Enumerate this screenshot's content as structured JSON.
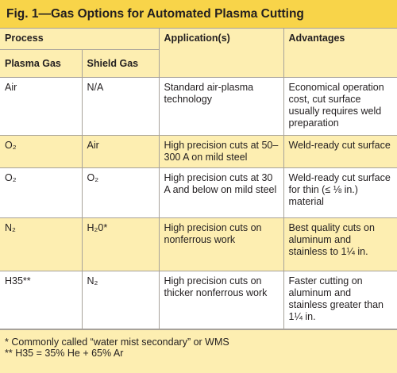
{
  "title": "Fig. 1—Gas Options for Automated Plasma Cutting",
  "table": {
    "header": {
      "group": "Process",
      "columns": [
        "Plasma Gas",
        "Shield Gas",
        "Application(s)",
        "Advantages"
      ]
    },
    "rows": [
      [
        "Air",
        "N/A",
        "Standard air-plasma technology",
        "Economical operation cost, cut surface usually requires weld preparation"
      ],
      [
        "O₂",
        "Air",
        "High precision cuts at 50–300 A on mild steel",
        "Weld-ready cut surface"
      ],
      [
        "O₂",
        "O₂",
        "High precision cuts at 30 A and below on mild steel",
        "Weld-ready cut surface for thin (≤ ⅛ in.) material"
      ],
      [
        "N₂",
        "H₂0*",
        "High precision cuts on nonferrous work",
        "Best quality cuts on aluminum and stainless to 1¼ in."
      ],
      [
        "H35**",
        "N₂",
        "High precision cuts on thicker nonferrous work",
        "Faster cutting on aluminum and stainless greater than 1¼ in."
      ]
    ]
  },
  "footnotes": [
    "* Commonly called “water mist secondary” or WMS",
    "** H35 = 35% He + 65% Ar"
  ]
}
